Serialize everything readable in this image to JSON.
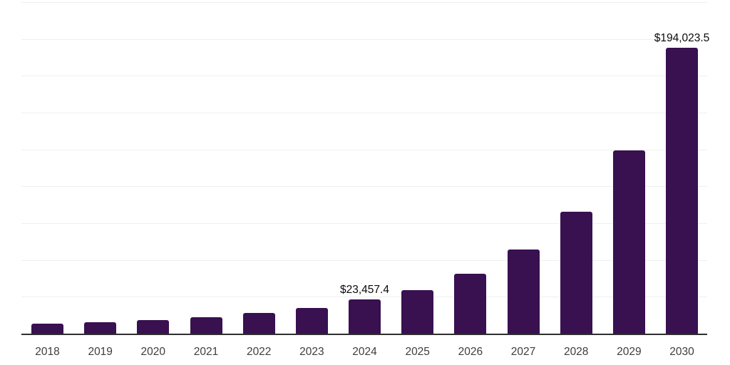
{
  "chart_data": {
    "type": "bar",
    "title": "",
    "xlabel": "",
    "ylabel": "",
    "categories": [
      "2018",
      "2019",
      "2020",
      "2021",
      "2022",
      "2023",
      "2024",
      "2025",
      "2026",
      "2027",
      "2028",
      "2029",
      "2030"
    ],
    "values": [
      6800,
      7900,
      9000,
      11300,
      14200,
      17400,
      23457.4,
      29700,
      40500,
      57100,
      82900,
      124500,
      194023.5
    ],
    "point_labels": {
      "2024": "$23,457.4",
      "2030": "$194,023.5"
    },
    "ylim": [
      0,
      225000
    ],
    "gridline_step": 25000,
    "grid": true,
    "legend": false,
    "y_axis_labels_visible": false,
    "colors": {
      "bar": "#391050",
      "gridline": "#efefef",
      "axis_line": "#2e2e2e",
      "tick_label": "#3d3d3d",
      "value_label": "#0a0a0a",
      "background": "#ffffff"
    }
  }
}
